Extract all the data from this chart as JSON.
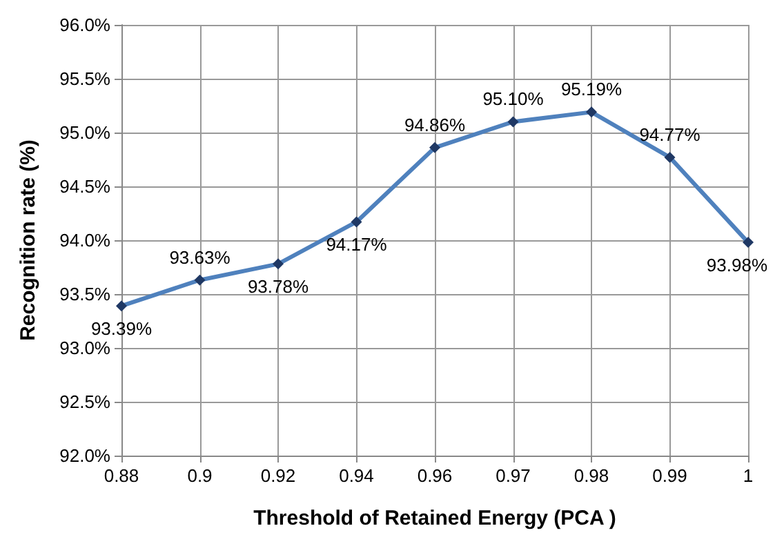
{
  "chart_data": {
    "type": "line",
    "xlabel": "Threshold of Retained Energy (PCA )",
    "ylabel": "Recognition rate (%)",
    "categories": [
      "0.88",
      "0.9",
      "0.92",
      "0.94",
      "0.96",
      "0.97",
      "0.98",
      "0.99",
      "1"
    ],
    "series": [
      {
        "color": "#4f81bd",
        "values": [
          93.39,
          93.63,
          93.78,
          94.17,
          94.86,
          95.1,
          95.19,
          94.77,
          93.98
        ],
        "value_labels": [
          "93.39%",
          "93.63%",
          "93.78%",
          "94.17%",
          "94.86%",
          "95.10%",
          "95.19%",
          "94.77%",
          "93.98%"
        ]
      }
    ],
    "ylim": [
      92,
      96
    ],
    "yticks": [
      {
        "value": 92,
        "label": "92.0%"
      },
      {
        "value": 92.5,
        "label": "92.5%"
      },
      {
        "value": 93,
        "label": "93.0%"
      },
      {
        "value": 93.5,
        "label": "93.5%"
      },
      {
        "value": 94,
        "label": "94.0%"
      },
      {
        "value": 94.5,
        "label": "94.5%"
      },
      {
        "value": 95,
        "label": "95.0%"
      },
      {
        "value": 95.5,
        "label": "95.5%"
      },
      {
        "value": 96,
        "label": "96.0%"
      }
    ],
    "grid": true,
    "marker": "diamond",
    "line_style": "solid"
  }
}
